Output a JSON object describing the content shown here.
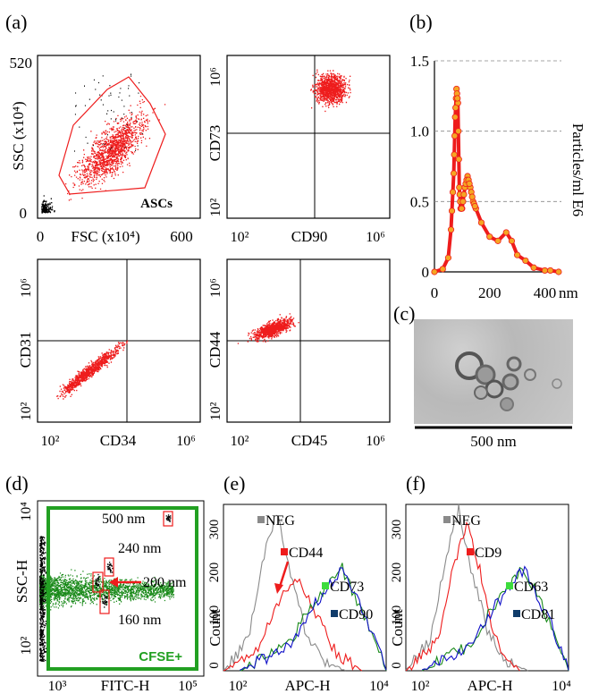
{
  "panels": {
    "a": {
      "label": "(a)",
      "scatter1": {
        "ylabel": "SSC (x10⁴)",
        "xlabel": "FSC (x10⁴)",
        "ytop": "520",
        "ybot": "0",
        "xleft": "0",
        "xright": "600",
        "gate_label": "ASCs"
      },
      "scatter2": {
        "ylabel": "CD73",
        "xlabel": "CD90",
        "ytop": "10⁶",
        "ybot": "10²",
        "xleft": "10²",
        "xright": "10⁶"
      },
      "scatter3": {
        "ylabel": "CD31",
        "xlabel": "CD34",
        "ytop": "10⁶",
        "ybot": "10²",
        "xleft": "10²",
        "xright": "10⁶"
      },
      "scatter4": {
        "ylabel": "CD44",
        "xlabel": "CD45",
        "ytop": "10⁶",
        "ybot": "10²",
        "xleft": "10²",
        "xright": "10⁶"
      }
    },
    "b": {
      "label": "(b)",
      "ylabel": "Particles/ml E6",
      "xunit": "nm",
      "yticks": [
        "0",
        "0.5",
        "1.0",
        "1.5"
      ],
      "xticks": [
        "0",
        "200",
        "400"
      ]
    },
    "c": {
      "label": "(c)",
      "scale_label": "500 nm"
    },
    "d": {
      "label": "(d)",
      "ylabel": "SSC-H",
      "xlabel": "FITC-H",
      "yticks": [
        "10⁴",
        "10²"
      ],
      "xticks": [
        "10³",
        "10⁵"
      ],
      "sizes": [
        "500 nm",
        "240 nm",
        "200 nm",
        "160 nm"
      ],
      "gate_label": "CFSE+"
    },
    "e": {
      "label": "(e)",
      "ylabel": "Count",
      "xlabel": "APC-H",
      "yticks": [
        "300",
        "200",
        "100",
        "0"
      ],
      "xticks": [
        "10²",
        "10⁴"
      ],
      "legend": [
        "NEG",
        "CD44",
        "CD73",
        "CD90"
      ]
    },
    "f": {
      "label": "(f)",
      "ylabel": "Count",
      "xlabel": "APC-H",
      "yticks": [
        "300",
        "200",
        "100",
        "0"
      ],
      "xticks": [
        "10²",
        "10⁴"
      ],
      "legend": [
        "NEG",
        "CD9",
        "CD63",
        "CD81"
      ]
    }
  },
  "colors": {
    "red": "#ee1c1c",
    "orange": "#f5a623",
    "green": "#1a8a1a",
    "gate_green": "#22a022",
    "blue": "#1010c8",
    "gray": "#8a8a8a",
    "light_green": "#3ddc3d",
    "navy": "#103c6a"
  },
  "chart_data": [
    {
      "type": "line",
      "panel": "b",
      "x": [
        0,
        30,
        50,
        60,
        70,
        75,
        80,
        85,
        90,
        95,
        100,
        110,
        120,
        130,
        140,
        150,
        170,
        200,
        230,
        260,
        280,
        300,
        330,
        360,
        400,
        420,
        450
      ],
      "y": [
        0,
        0.02,
        0.1,
        0.3,
        0.7,
        1.1,
        1.3,
        1.2,
        0.6,
        0.45,
        0.45,
        0.6,
        0.68,
        0.6,
        0.5,
        0.45,
        0.35,
        0.25,
        0.22,
        0.28,
        0.22,
        0.12,
        0.08,
        0.03,
        0.01,
        0.01,
        0.0
      ],
      "ylim": [
        0,
        1.5
      ],
      "xlim": [
        0,
        460
      ]
    },
    {
      "type": "line",
      "panel": "e",
      "series": [
        {
          "name": "NEG",
          "x": [
            2,
            2.3,
            2.5,
            2.65,
            2.8,
            3.0,
            3.2,
            3.5
          ],
          "y": [
            0,
            60,
            220,
            310,
            200,
            80,
            20,
            0
          ]
        },
        {
          "name": "CD44",
          "x": [
            2,
            2.4,
            2.7,
            2.9,
            3.1,
            3.4,
            3.7
          ],
          "y": [
            0,
            40,
            140,
            180,
            120,
            30,
            0
          ]
        },
        {
          "name": "CD73",
          "x": [
            2.2,
            2.8,
            3.1,
            3.45,
            3.8,
            4.0
          ],
          "y": [
            0,
            50,
            130,
            200,
            80,
            0
          ]
        },
        {
          "name": "CD90",
          "x": [
            2.2,
            2.8,
            3.1,
            3.45,
            3.8,
            4.0
          ],
          "y": [
            0,
            45,
            125,
            195,
            85,
            0
          ]
        }
      ],
      "xlim": [
        2,
        4
      ],
      "ylim": [
        0,
        320
      ]
    },
    {
      "type": "line",
      "panel": "f",
      "series": [
        {
          "name": "NEG",
          "x": [
            2,
            2.3,
            2.5,
            2.65,
            2.8,
            3.0,
            3.2,
            3.5
          ],
          "y": [
            0,
            60,
            220,
            310,
            200,
            80,
            20,
            0
          ]
        },
        {
          "name": "CD9",
          "x": [
            2,
            2.4,
            2.6,
            2.75,
            2.9,
            3.1,
            3.4
          ],
          "y": [
            0,
            60,
            210,
            280,
            200,
            60,
            0
          ]
        },
        {
          "name": "CD63",
          "x": [
            2.2,
            2.8,
            3.1,
            3.45,
            3.8,
            4.0
          ],
          "y": [
            0,
            50,
            130,
            200,
            80,
            0
          ]
        },
        {
          "name": "CD81",
          "x": [
            2.2,
            2.8,
            3.1,
            3.45,
            3.8,
            4.0
          ],
          "y": [
            0,
            45,
            125,
            195,
            85,
            0
          ]
        }
      ],
      "xlim": [
        2,
        4
      ],
      "ylim": [
        0,
        320
      ]
    }
  ]
}
